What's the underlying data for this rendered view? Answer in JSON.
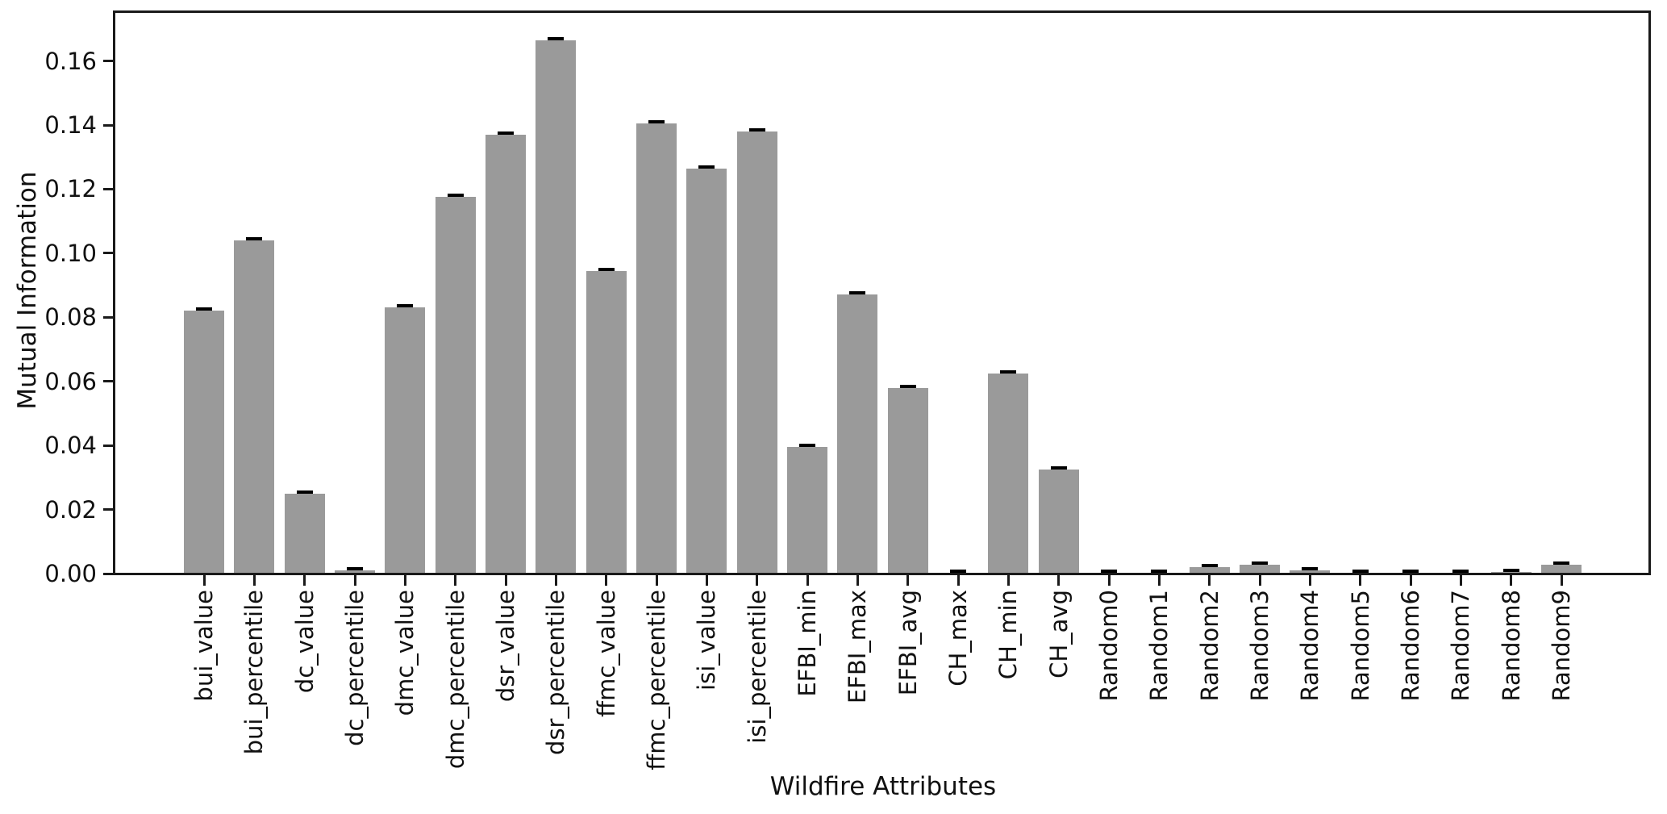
{
  "chart_data": {
    "type": "bar",
    "title": "",
    "xlabel": "Wildfire Attributes",
    "ylabel": "Mutual Information",
    "categories": [
      "bui_value",
      "bui_percentile",
      "dc_value",
      "dc_percentile",
      "dmc_value",
      "dmc_percentile",
      "dsr_value",
      "dsr_percentile",
      "ffmc_value",
      "ffmc_percentile",
      "isi_value",
      "isi_percentile",
      "EFBI_min",
      "EFBI_max",
      "EFBI_avg",
      "CH_max",
      "CH_min",
      "CH_avg",
      "Random0",
      "Random1",
      "Random2",
      "Random3",
      "Random4",
      "Random5",
      "Random6",
      "Random7",
      "Random8",
      "Random9"
    ],
    "values": [
      0.082,
      0.104,
      0.025,
      0.001,
      0.083,
      0.1175,
      0.137,
      0.1665,
      0.0945,
      0.1405,
      0.1265,
      0.138,
      0.0395,
      0.087,
      0.058,
      0.0003,
      0.0625,
      0.0325,
      0.0003,
      0.0003,
      0.0021,
      0.0028,
      0.001,
      0.0002,
      0.0002,
      0.0003,
      0.0004,
      0.0028
    ],
    "errors": [
      0.0008,
      0.0008,
      0.0008,
      0.0008,
      0.0008,
      0.0008,
      0.0008,
      0.0008,
      0.0008,
      0.0008,
      0.0008,
      0.0008,
      0.0008,
      0.0008,
      0.0008,
      0.0003,
      0.0008,
      0.0008,
      0.0003,
      0.0003,
      0.0008,
      0.0008,
      0.0008,
      0.0003,
      0.0003,
      0.0003,
      0.0003,
      0.0008
    ],
    "ytick_labels": [
      "0.00",
      "0.02",
      "0.04",
      "0.06",
      "0.08",
      "0.10",
      "0.12",
      "0.14",
      "0.16"
    ],
    "ytick_step": 0.02,
    "ylim": [
      0,
      0.175
    ],
    "grid": true,
    "grid_axis": "y",
    "legend": null,
    "bar_color": "#9a9a9a",
    "grid_color": "#cfcfcf",
    "error_color": "#000000",
    "background_color": "#ffffff"
  }
}
